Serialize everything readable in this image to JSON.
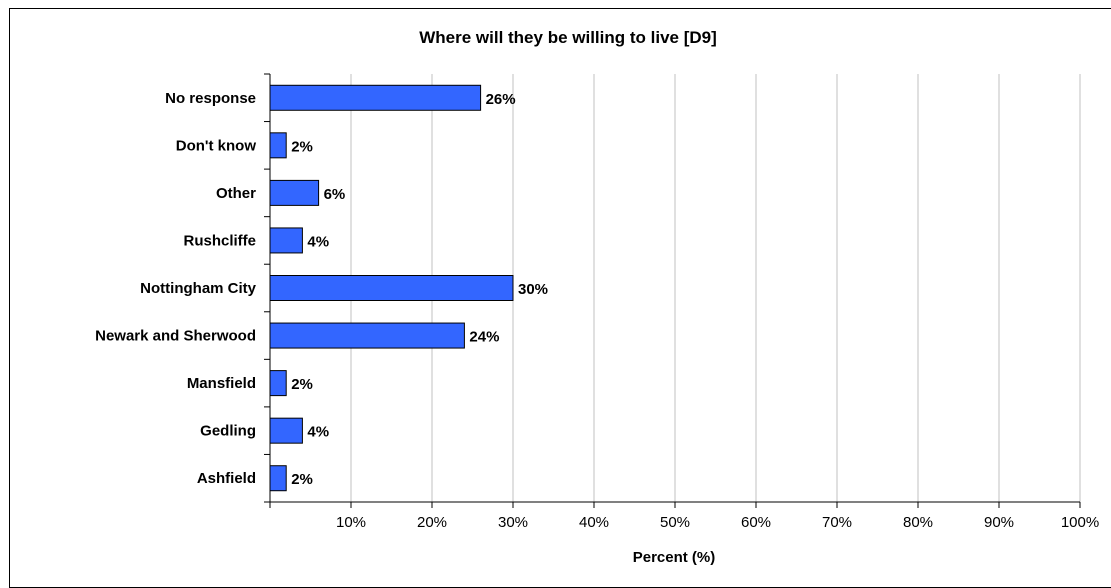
{
  "chart_data": {
    "type": "bar",
    "orientation": "horizontal",
    "title": "Where will they be willing to live [D9]",
    "xlabel": "Percent (%)",
    "ylabel": "",
    "xlim": [
      0,
      100
    ],
    "x_ticks": [
      "10%",
      "20%",
      "30%",
      "40%",
      "50%",
      "60%",
      "70%",
      "80%",
      "90%",
      "100%"
    ],
    "grid": true,
    "bar_color": "#3366FF",
    "categories": [
      "No response",
      "Don't know",
      "Other",
      "Rushcliffe",
      "Nottingham City",
      "Newark and Sherwood",
      "Mansfield",
      "Gedling",
      "Ashfield"
    ],
    "values": [
      26,
      2,
      6,
      4,
      30,
      24,
      2,
      4,
      2
    ],
    "data_labels": [
      "26%",
      "2%",
      "6%",
      "4%",
      "30%",
      "24%",
      "2%",
      "4%",
      "2%"
    ]
  }
}
